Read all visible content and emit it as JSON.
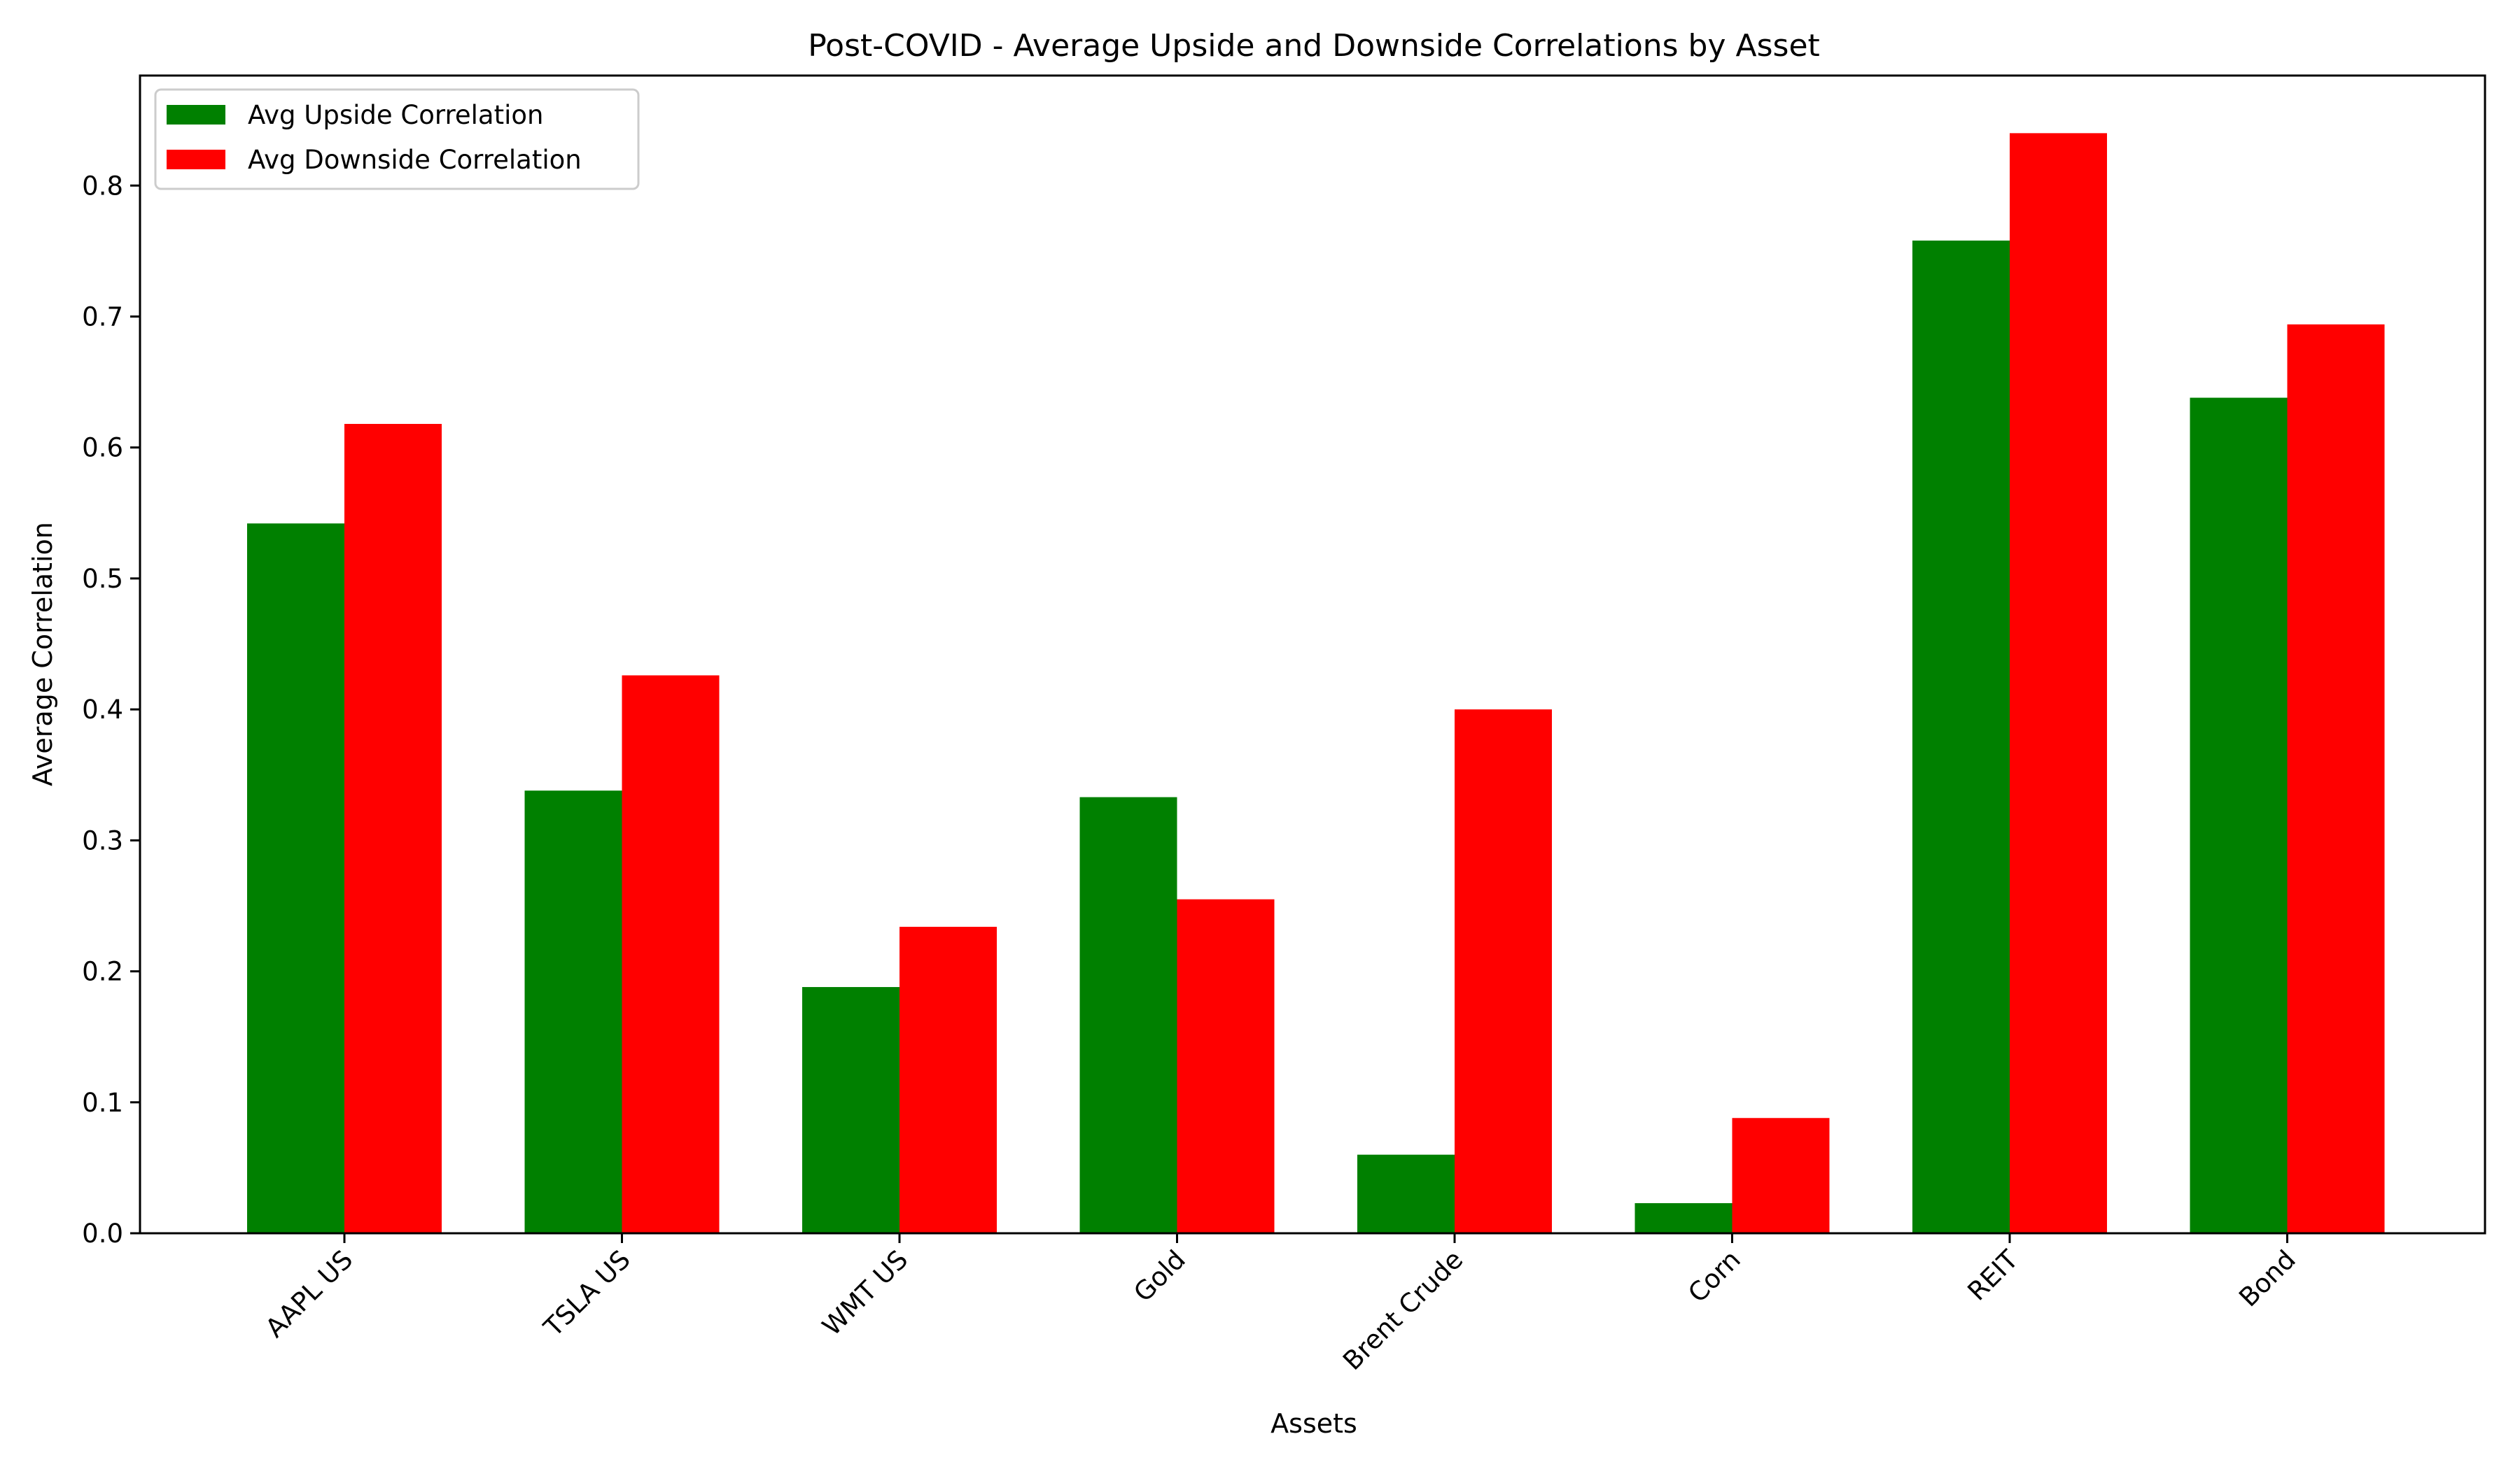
{
  "chart_data": {
    "type": "bar",
    "title": "Post-COVID - Average Upside and Downside Correlations by Asset",
    "xlabel": "Assets",
    "ylabel": "Average Correlation",
    "categories": [
      "AAPL US",
      "TSLA US",
      "WMT US",
      "Gold",
      "Brent Crude",
      "Corn",
      "REIT",
      "Bond"
    ],
    "series": [
      {
        "name": "Avg Upside Correlation",
        "color": "#008000",
        "values": [
          0.542,
          0.338,
          0.188,
          0.333,
          0.06,
          0.023,
          0.758,
          0.638
        ]
      },
      {
        "name": "Avg Downside Correlation",
        "color": "#ff0000",
        "values": [
          0.618,
          0.426,
          0.234,
          0.255,
          0.4,
          0.088,
          0.84,
          0.694
        ]
      }
    ],
    "ylim": [
      0,
      0.884
    ],
    "yticks": [
      "0.0",
      "0.1",
      "0.2",
      "0.3",
      "0.4",
      "0.5",
      "0.6",
      "0.7",
      "0.8"
    ],
    "grid": false,
    "legend_position": "top-left"
  }
}
